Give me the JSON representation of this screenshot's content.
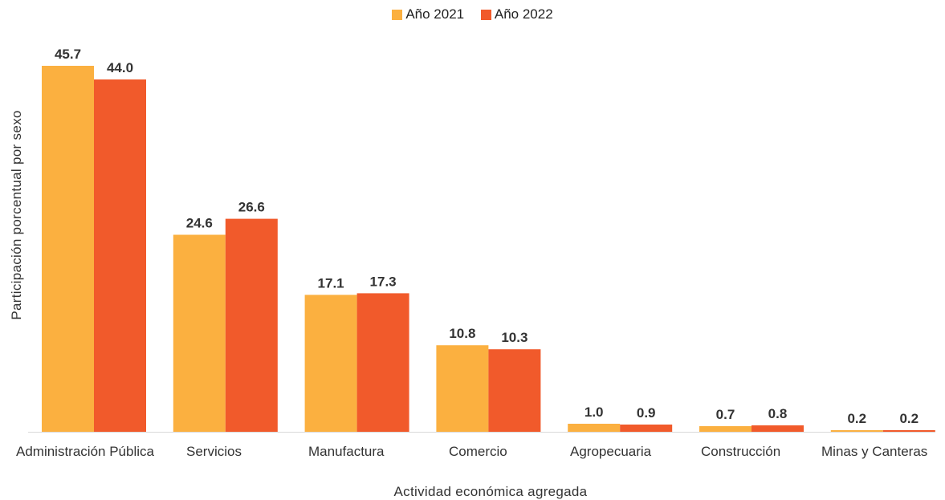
{
  "chart_data": {
    "type": "bar",
    "title": "",
    "xlabel": "Actividad económica agregada",
    "ylabel": "Participación porcentual por sexo",
    "categories": [
      "Administración Pública",
      "Servicios",
      "Manufactura",
      "Comercio",
      "Agropecuaria",
      "Construcción",
      "Minas y Canteras"
    ],
    "series": [
      {
        "name": "Año 2021",
        "color": "#FBB040",
        "values": [
          45.7,
          24.6,
          17.1,
          10.8,
          1.0,
          0.7,
          0.2
        ],
        "labels": [
          "45.7",
          "24.6",
          "17.1",
          "10.8",
          "1.0",
          "0.7",
          "0.2"
        ]
      },
      {
        "name": "Año 2022",
        "color": "#F15A2B",
        "values": [
          44.0,
          26.6,
          17.3,
          10.3,
          0.9,
          0.8,
          0.2
        ],
        "labels": [
          "44.0",
          "26.6",
          "17.3",
          "10.3",
          "0.9",
          "0.8",
          "0.2"
        ]
      }
    ],
    "ylim": [
      0,
      45.7
    ],
    "grid": false,
    "legend_position": "top-center",
    "axis_color": "#d9d9d9"
  }
}
